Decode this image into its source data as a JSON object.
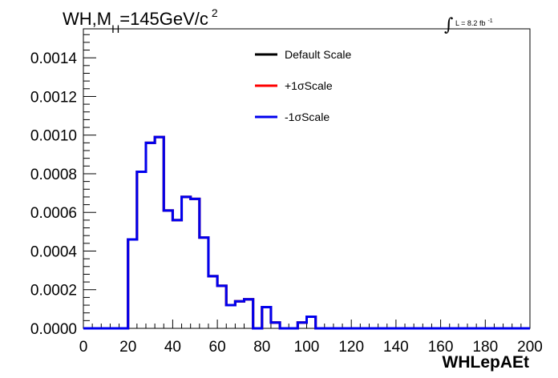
{
  "chart_data": {
    "type": "line",
    "title_main": "WH,M",
    "title_sub": "H",
    "title_rest": "=145GeV/c",
    "title_sup": "2",
    "lumi_text": "L = 8.2 fb",
    "lumi_sup": "-1",
    "xlabel": "WHLepAEt",
    "ylabel": "",
    "xlim": [
      0,
      200
    ],
    "ylim": [
      0,
      0.00155
    ],
    "x_ticks": [
      "0",
      "20",
      "40",
      "60",
      "80",
      "100",
      "120",
      "140",
      "160",
      "180",
      "200"
    ],
    "y_ticks": [
      "0.0000",
      "0.0002",
      "0.0004",
      "0.0006",
      "0.0008",
      "0.0010",
      "0.0012",
      "0.0014"
    ],
    "bin_width": 4,
    "bin_edges_start": 0,
    "legend_position": "top-center",
    "grid": false,
    "series": [
      {
        "name": "Default Scale",
        "color": "#000000",
        "values": [
          0,
          0,
          0,
          0,
          0,
          0.00046,
          0.00081,
          0.00096,
          0.00099,
          0.00061,
          0.00056,
          0.00068,
          0.00067,
          0.00047,
          0.00027,
          0.00022,
          0.00012,
          0.00014,
          0.00015,
          0,
          0.00011,
          3e-05,
          0,
          0,
          3e-05,
          6e-05,
          0,
          0,
          0,
          0,
          0,
          0,
          0,
          0,
          0,
          0,
          0,
          0,
          0,
          0,
          0,
          0,
          0,
          0,
          0,
          0,
          0,
          0,
          0,
          0
        ]
      },
      {
        "name": "+1σScale",
        "color": "#ff0000",
        "values": [
          0,
          0,
          0,
          0,
          0,
          0.00046,
          0.00081,
          0.00096,
          0.00099,
          0.00061,
          0.00056,
          0.00068,
          0.00067,
          0.00047,
          0.00027,
          0.00022,
          0.00012,
          0.00014,
          0.00015,
          0,
          0.00011,
          3e-05,
          0,
          0,
          3e-05,
          6e-05,
          0,
          0,
          0,
          0,
          0,
          0,
          0,
          0,
          0,
          0,
          0,
          0,
          0,
          0,
          0,
          0,
          0,
          0,
          0,
          0,
          0,
          0,
          0,
          0
        ]
      },
      {
        "name": "-1σScale",
        "color": "#0000ee",
        "values": [
          0,
          0,
          0,
          0,
          0,
          0.00046,
          0.00081,
          0.00096,
          0.00099,
          0.00061,
          0.00056,
          0.00068,
          0.00067,
          0.00047,
          0.00027,
          0.00022,
          0.00012,
          0.00014,
          0.00015,
          0,
          0.00011,
          3e-05,
          0,
          0,
          3e-05,
          6e-05,
          0,
          0,
          0,
          0,
          0,
          0,
          0,
          0,
          0,
          0,
          0,
          0,
          0,
          0,
          0,
          0,
          0,
          0,
          0,
          0,
          0,
          0,
          0,
          0
        ]
      }
    ]
  }
}
